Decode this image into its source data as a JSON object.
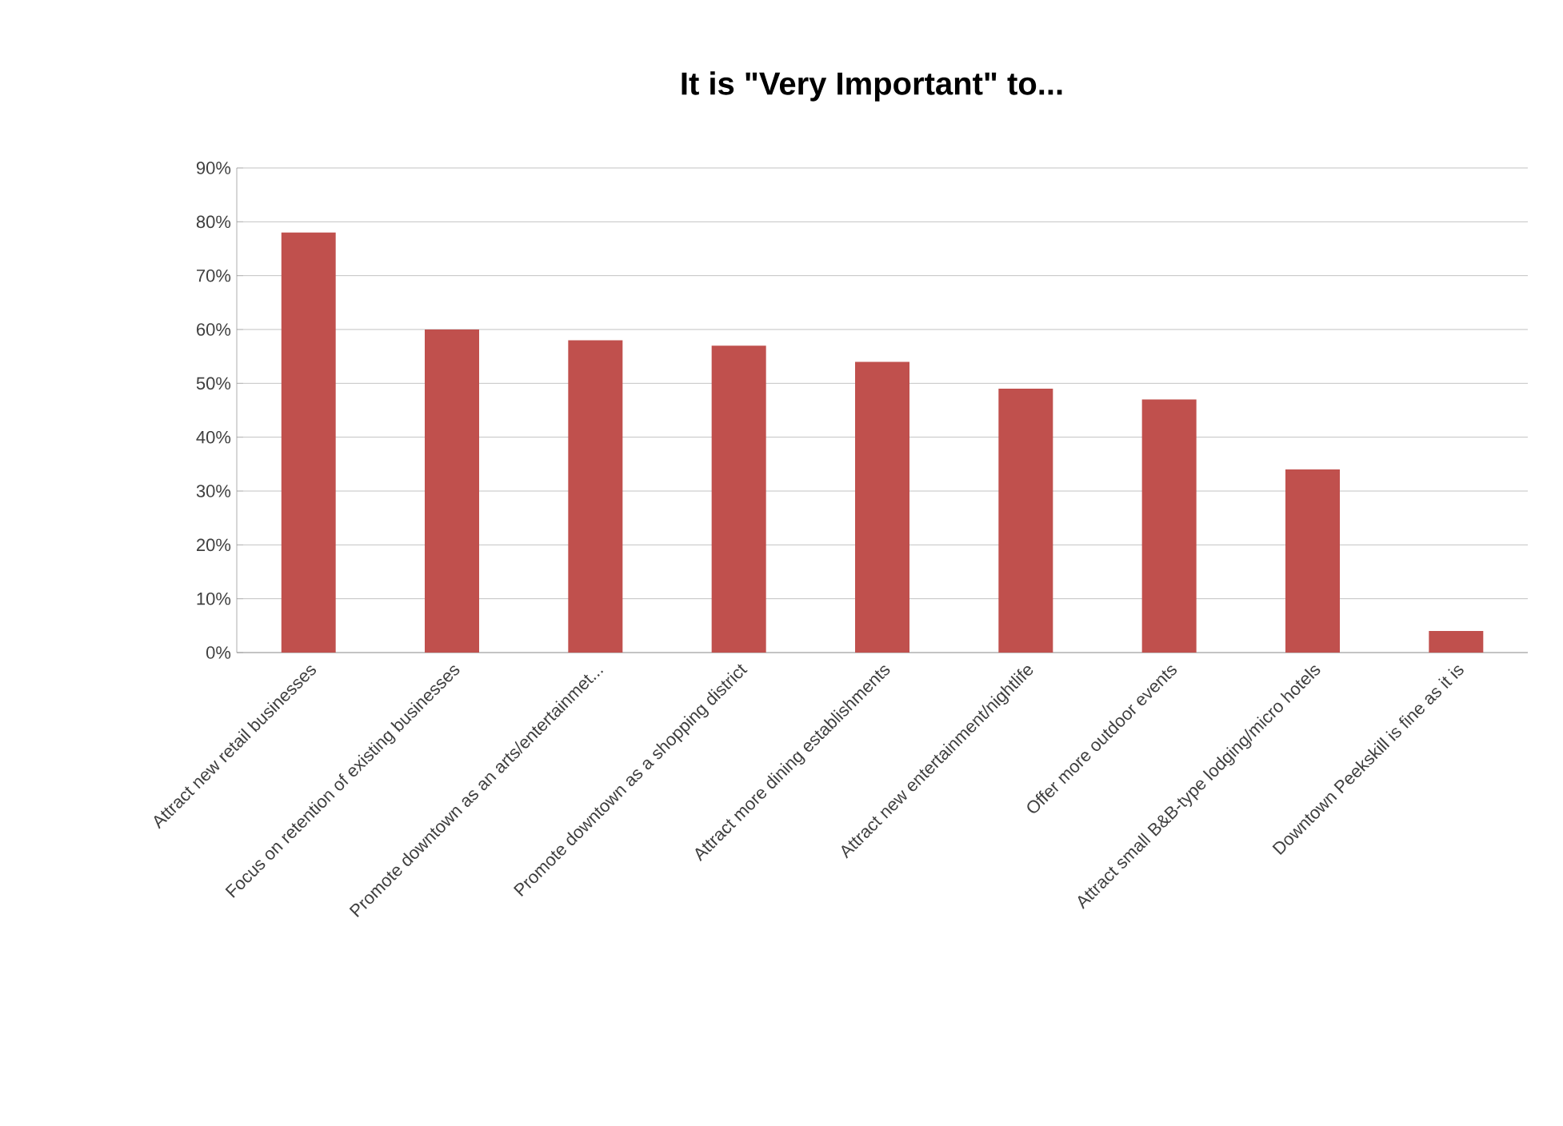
{
  "chart_data": {
    "type": "bar",
    "title": "It is \"Very Important\" to...",
    "categories": [
      "Attract new retail businesses",
      "Focus on retention of existing businesses",
      "Promote downtown as an arts/entertainmet...",
      "Promote downtown as a shopping district",
      "Attract more dining establishments",
      "Attract new entertainment/nightlife",
      "Offer more outdoor events",
      "Attract small B&B-type lodging/micro hotels",
      "Downtown Peekskill is fine as it is"
    ],
    "values": [
      78,
      60,
      58,
      57,
      54,
      49,
      47,
      34,
      4
    ],
    "color": "#c0504d",
    "ylim": [
      0,
      90
    ],
    "yticks": [
      {
        "value": 0,
        "label": "0%"
      },
      {
        "value": 10,
        "label": "10%"
      },
      {
        "value": 20,
        "label": "20%"
      },
      {
        "value": 30,
        "label": "30%"
      },
      {
        "value": 40,
        "label": "40%"
      },
      {
        "value": 50,
        "label": "50%"
      },
      {
        "value": 60,
        "label": "60%"
      },
      {
        "value": 70,
        "label": "70%"
      },
      {
        "value": 80,
        "label": "80%"
      },
      {
        "value": 90,
        "label": "90%"
      }
    ],
    "grid": "y"
  }
}
